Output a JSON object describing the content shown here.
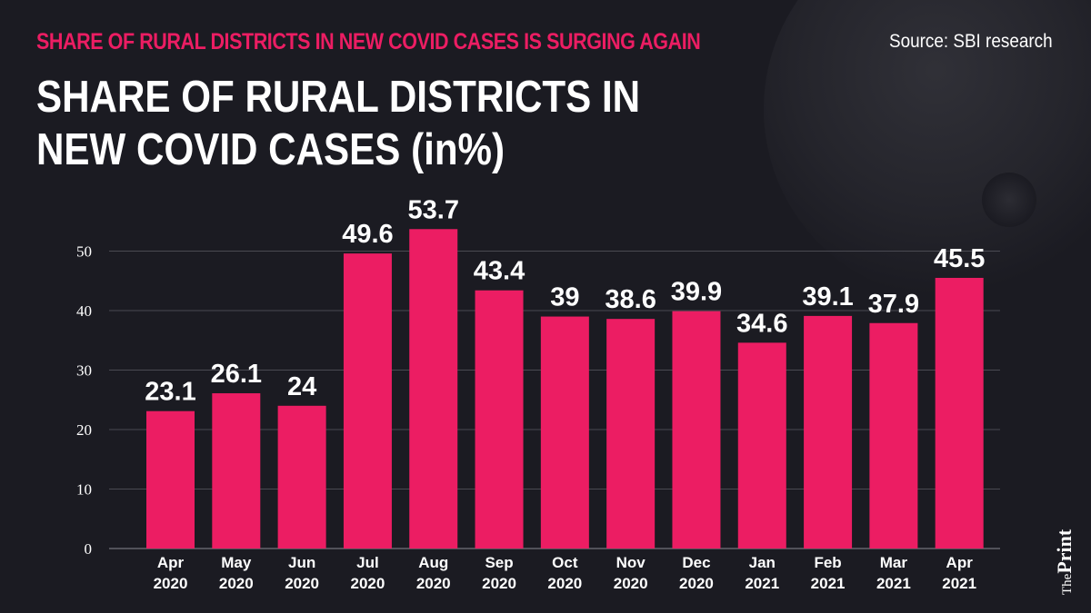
{
  "header": {
    "kicker": "SHARE OF RURAL DISTRICTS IN NEW COVID CASES IS SURGING AGAIN",
    "source": "Source: SBI research",
    "title_line1": "SHARE OF RURAL DISTRICTS IN",
    "title_line2": "NEW COVID CASES (in%)"
  },
  "brand": {
    "the": "The",
    "print": "Print"
  },
  "colors": {
    "bar": "#ec1d63",
    "accent": "#ec1d63",
    "background": "#1b1b22",
    "grid": "#4a4a52"
  },
  "chart_data": {
    "type": "bar",
    "title": "SHARE OF RURAL DISTRICTS IN NEW COVID CASES (in%)",
    "xlabel": "",
    "ylabel": "",
    "ylim": [
      0,
      55
    ],
    "yticks": [
      0,
      10,
      20,
      30,
      40,
      50
    ],
    "grid": true,
    "categories": [
      [
        "Apr",
        "2020"
      ],
      [
        "May",
        "2020"
      ],
      [
        "Jun",
        "2020"
      ],
      [
        "Jul",
        "2020"
      ],
      [
        "Aug",
        "2020"
      ],
      [
        "Sep",
        "2020"
      ],
      [
        "Oct",
        "2020"
      ],
      [
        "Nov",
        "2020"
      ],
      [
        "Dec",
        "2020"
      ],
      [
        "Jan",
        "2021"
      ],
      [
        "Feb",
        "2021"
      ],
      [
        "Mar",
        "2021"
      ],
      [
        "Apr",
        "2021"
      ]
    ],
    "values": [
      23.1,
      26.1,
      24,
      49.6,
      53.7,
      43.4,
      39,
      38.6,
      39.9,
      34.6,
      39.1,
      37.9,
      45.5
    ]
  }
}
